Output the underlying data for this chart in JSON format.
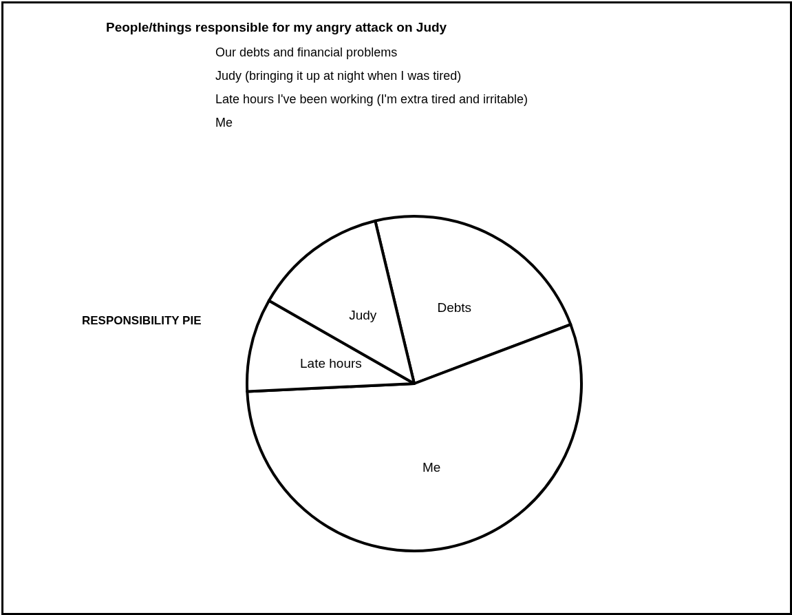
{
  "chart_data": {
    "type": "pie",
    "title": "People/things responsible for my angry attack on Judy",
    "annotations": [
      "Our debts and financial problems",
      "Judy (bringing it up at night when I was tired)",
      "Late hours I've been working (I'm extra tired and irritable)",
      "Me",
      "RESPONSIBILITY PIE"
    ],
    "categories": [
      "Debts",
      "Me",
      "Late hours",
      "Judy"
    ],
    "values": [
      23,
      55,
      9,
      13
    ],
    "colors": [
      "#ffffff",
      "#ffffff",
      "#ffffff",
      "#ffffff"
    ],
    "legend": false
  }
}
